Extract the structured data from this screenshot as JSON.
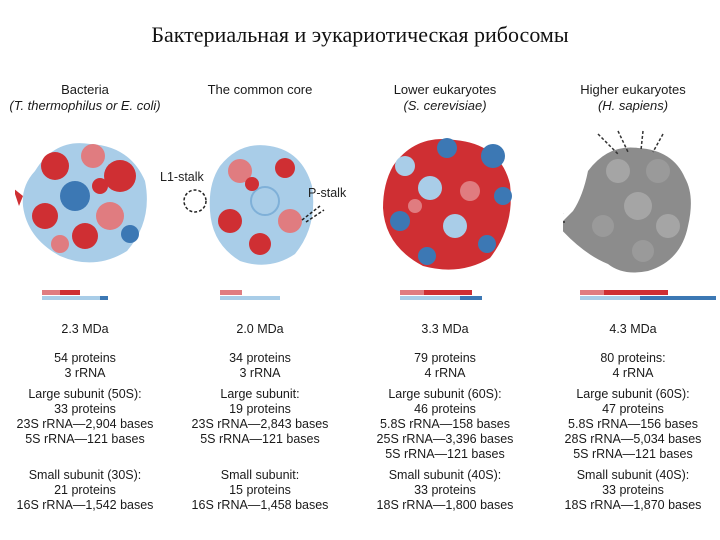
{
  "slide_title": "Бактериальная и эукариотическая рибосомы",
  "colors": {
    "rrna_red": "#cf2f33",
    "rrna_pink": "#e07c80",
    "protein_lightblue": "#a9cde8",
    "protein_blue": "#3c78b4",
    "human_gray": "#8c8c8c"
  },
  "columns": [
    {
      "title": "Bacteria",
      "subtitle": "(T. thermophilus or E. coli)",
      "mass": "2.3 MDa",
      "totals": [
        "54 proteins",
        "3 rRNA"
      ],
      "large": [
        "Large subunit (50S):",
        "33 proteins",
        "23S rRNA—2,904 bases",
        "5S rRNA—121 bases"
      ],
      "small": [
        "Small subunit (30S):",
        "21 proteins",
        "16S rRNA—1,542 bases"
      ]
    },
    {
      "title": "The common core",
      "subtitle": "",
      "mass": "2.0 MDa",
      "totals": [
        "34 proteins",
        "3 rRNA"
      ],
      "large": [
        "Large subunit:",
        "19 proteins",
        "23S rRNA—2,843 bases",
        "5S rRNA—121 bases"
      ],
      "small": [
        "Small subunit:",
        "15 proteins",
        "16S rRNA—1,458 bases"
      ]
    },
    {
      "title": "Lower eukaryotes",
      "subtitle": "(S. cerevisiae)",
      "mass": "3.3 MDa",
      "totals": [
        "79 proteins",
        "4 rRNA"
      ],
      "large": [
        "Large subunit (60S):",
        "46 proteins",
        "5.8S rRNA—158 bases",
        "25S rRNA—3,396 bases",
        "5S rRNA—121 bases"
      ],
      "small": [
        "Small subunit (40S):",
        "33 proteins",
        "18S rRNA—1,800 bases"
      ]
    },
    {
      "title": "Higher eukaryotes",
      "subtitle": "(H. sapiens)",
      "mass": "4.3 MDa",
      "totals": [
        "80 proteins:",
        "4 rRNA"
      ],
      "large": [
        "Large subunit (60S):",
        "47 proteins",
        "5.8S rRNA—156 bases",
        "28S rRNA—5,034 bases",
        "5S rRNA—121 bases"
      ],
      "small": [
        "Small subunit (40S):",
        "33 proteins",
        "18S rRNA—1,870 bases"
      ]
    }
  ],
  "callouts": {
    "l1_stalk": "L1-stalk",
    "p_stalk": "P-stalk"
  }
}
